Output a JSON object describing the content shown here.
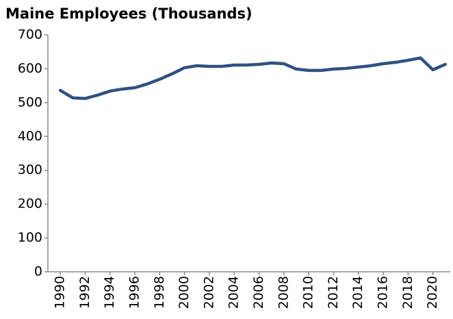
{
  "chart_data": {
    "type": "line",
    "title": "Maine Employees (Thousands)",
    "x": [
      1990,
      1991,
      1992,
      1993,
      1994,
      1995,
      1996,
      1997,
      1998,
      1999,
      2000,
      2001,
      2002,
      2003,
      2004,
      2005,
      2006,
      2007,
      2008,
      2009,
      2010,
      2011,
      2012,
      2013,
      2014,
      2015,
      2016,
      2017,
      2018,
      2019,
      2020,
      2021
    ],
    "series": [
      {
        "name": "Maine Employees",
        "color": "#2f5180",
        "values": [
          536,
          514,
          512,
          522,
          534,
          540,
          544,
          555,
          569,
          585,
          603,
          609,
          607,
          607,
          611,
          611,
          613,
          617,
          615,
          599,
          595,
          595,
          599,
          601,
          605,
          609,
          615,
          619,
          625,
          632,
          597,
          613
        ]
      }
    ],
    "xlim": [
      1989,
      2021.4
    ],
    "xticks": [
      1990,
      1992,
      1994,
      1996,
      1998,
      2000,
      2002,
      2004,
      2006,
      2008,
      2010,
      2012,
      2014,
      2016,
      2018,
      2020
    ],
    "ylim": [
      0,
      700
    ],
    "yticks": [
      0,
      100,
      200,
      300,
      400,
      500,
      600,
      700
    ],
    "grid": false
  }
}
